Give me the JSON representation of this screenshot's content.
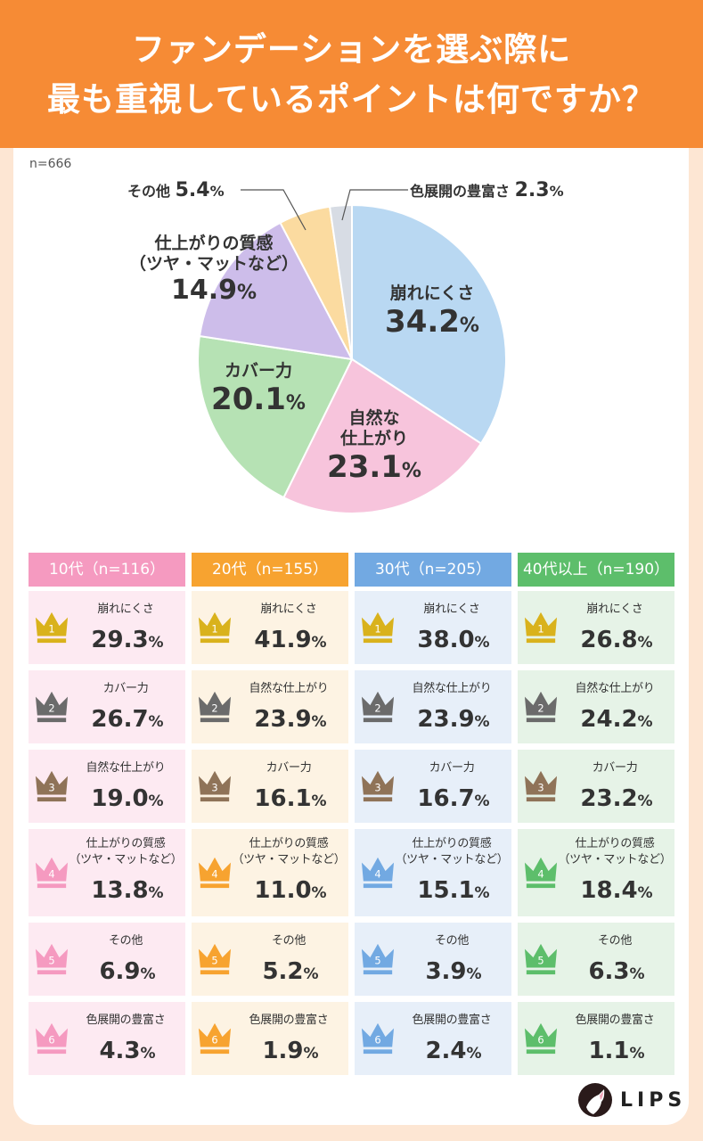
{
  "header": {
    "line1": "ファンデーションを選ぶ際に",
    "line2": "最も重視しているポイントは何ですか？"
  },
  "sample": "n=666",
  "chart_data": {
    "type": "pie",
    "title": "ファンデーションを選ぶ際に最も重視しているポイントは何ですか？",
    "n": 666,
    "unit": "%",
    "slices": [
      {
        "label": "崩れにくさ",
        "value": 34.2,
        "color": "#b9d8f2"
      },
      {
        "label": "自然な仕上がり",
        "value": 23.1,
        "color": "#f7c4dc"
      },
      {
        "label": "カバー力",
        "value": 20.1,
        "color": "#b6e2b4"
      },
      {
        "label": "仕上がりの質感（ツヤ・マットなど）",
        "value": 14.9,
        "color": "#cdbdea"
      },
      {
        "label": "その他",
        "value": 5.4,
        "color": "#fbdba0"
      },
      {
        "label": "色展開の豊富さ",
        "value": 2.3,
        "color": "#d7dce4"
      }
    ]
  },
  "pie_labels": {
    "l0": {
      "a": "崩れにくさ",
      "v": "34.2"
    },
    "l1": {
      "a": "自然な",
      "b": "仕上がり",
      "v": "23.1"
    },
    "l2": {
      "a": "カバー力",
      "v": "20.1"
    },
    "l3": {
      "a": "仕上がりの質感",
      "b": "（ツヤ・マットなど）",
      "v": "14.9"
    },
    "l4": {
      "a": "その他",
      "v": "5.4"
    },
    "l5": {
      "a": "色展開の豊富さ",
      "v": "2.3"
    },
    "pct": "%"
  },
  "rank_colors": [
    "#d9b21c",
    "#6b6b6b",
    "#8f7358"
  ],
  "groups": [
    {
      "header": "10代（n=116）",
      "color": "#f59ac0",
      "bg": "#fdeaf2",
      "rows": [
        {
          "name": "崩れにくさ",
          "value": "29.3"
        },
        {
          "name": "カバー力",
          "value": "26.7"
        },
        {
          "name": "自然な仕上がり",
          "value": "19.0"
        },
        {
          "name": "仕上がりの質感",
          "name2": "（ツヤ・マットなど）",
          "value": "13.8"
        },
        {
          "name": "その他",
          "value": "6.9"
        },
        {
          "name": "色展開の豊富さ",
          "value": "4.3"
        }
      ]
    },
    {
      "header": "20代（n=155）",
      "color": "#f7a330",
      "bg": "#fdf3e3",
      "rows": [
        {
          "name": "崩れにくさ",
          "value": "41.9"
        },
        {
          "name": "自然な仕上がり",
          "value": "23.9"
        },
        {
          "name": "カバー力",
          "value": "16.1"
        },
        {
          "name": "仕上がりの質感",
          "name2": "（ツヤ・マットなど）",
          "value": "11.0"
        },
        {
          "name": "その他",
          "value": "5.2"
        },
        {
          "name": "色展開の豊富さ",
          "value": "1.9"
        }
      ]
    },
    {
      "header": "30代（n=205）",
      "color": "#72a9e2",
      "bg": "#e7eff9",
      "rows": [
        {
          "name": "崩れにくさ",
          "value": "38.0"
        },
        {
          "name": "自然な仕上がり",
          "value": "23.9"
        },
        {
          "name": "カバー力",
          "value": "16.7"
        },
        {
          "name": "仕上がりの質感",
          "name2": "（ツヤ・マットなど）",
          "value": "15.1"
        },
        {
          "name": "その他",
          "value": "3.9"
        },
        {
          "name": "色展開の豊富さ",
          "value": "2.4"
        }
      ]
    },
    {
      "header": "40代以上（n=190）",
      "color": "#5dbe6b",
      "bg": "#e6f3e7",
      "rows": [
        {
          "name": "崩れにくさ",
          "value": "26.8"
        },
        {
          "name": "自然な仕上がり",
          "value": "24.2"
        },
        {
          "name": "カバー力",
          "value": "23.2"
        },
        {
          "name": "仕上がりの質感",
          "name2": "（ツヤ・マットなど）",
          "value": "18.4"
        },
        {
          "name": "その他",
          "value": "6.3"
        },
        {
          "name": "色展開の豊富さ",
          "value": "1.1"
        }
      ]
    }
  ],
  "logo": "LIPS"
}
